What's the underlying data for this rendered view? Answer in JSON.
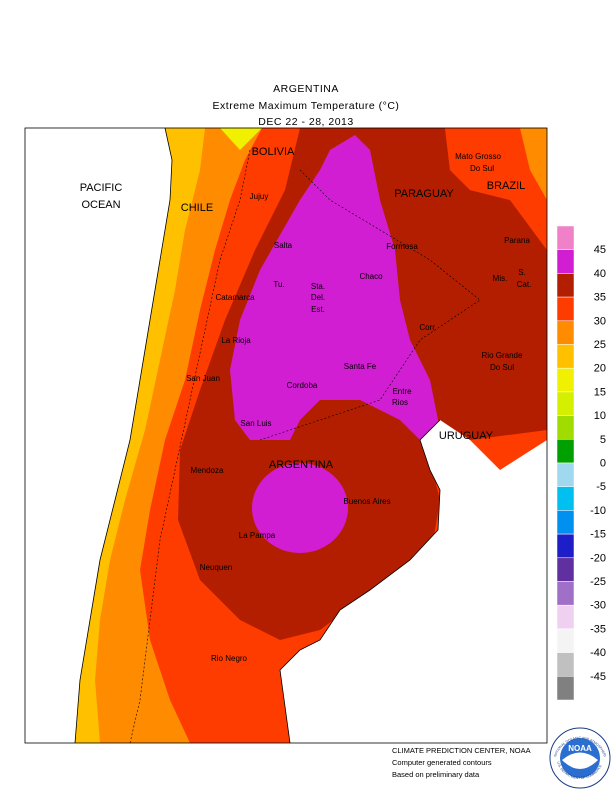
{
  "header": {
    "title": "ARGENTINA",
    "subtitle": "Extreme Maximum Temperature (°C)",
    "date": "DEC 22 - 28, 2013"
  },
  "map": {
    "labels": [
      "PACIFIC",
      "OCEAN",
      "CHILE",
      "BOLIVIA",
      "PARAGUAY",
      "BRAZIL",
      "Mato Grosso",
      "Do Sul",
      "Parana",
      "Jujuy",
      "Salta",
      "Formosa",
      "Chaco",
      "Tu.",
      "Sta.",
      "Del.",
      "Est.",
      "Catamarca",
      "Mis.",
      "S.",
      "Cat.",
      "La Rioja",
      "Corr.",
      "Rio Grande",
      "Do Sul",
      "San Juan",
      "Cordoba",
      "Santa Fe",
      "Entre",
      "Rios",
      "San Luis",
      "URUGUAY",
      "ARGENTINA",
      "Mendoza",
      "Buenos Aires",
      "La Pampa",
      "Neuquen",
      "Rio Negro"
    ]
  },
  "legend": {
    "levels": [
      45,
      40,
      35,
      30,
      25,
      20,
      15,
      10,
      5,
      0,
      -5,
      -10,
      -15,
      -20,
      -25,
      -30,
      -35,
      -40,
      -45
    ],
    "colors": [
      "#f080c8",
      "#d21ed2",
      "#b41e00",
      "#ff3c00",
      "#ff8c00",
      "#ffc000",
      "#f0f000",
      "#d4f000",
      "#a0dc00",
      "#00a000",
      "#a0d8f0",
      "#00c0f0",
      "#0090f0",
      "#1e1ec8",
      "#6030a0",
      "#a070c8",
      "#f0d0f0",
      "#f4f4f4",
      "#c0c0c0",
      "#808080"
    ]
  },
  "footer": {
    "lines": [
      "CLIMATE PREDICTION CENTER, NOAA",
      "Computer generated contours",
      "Based on preliminary data"
    ]
  },
  "logo": {
    "text": "NOAA",
    "ring_top": "NATIONAL OCEANIC AND ATMOSPHERIC ADMINISTRATION",
    "ring_bottom": "U.S. DEPARTMENT OF COMMERCE"
  }
}
